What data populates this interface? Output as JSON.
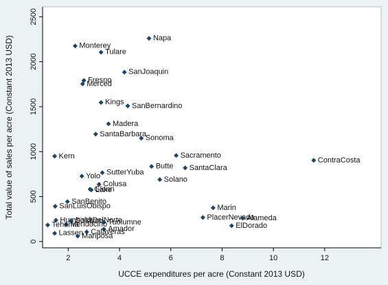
{
  "chart_data": {
    "type": "scatter",
    "x_label": "UCCE expenditures per acre (Constant 2013 USD)",
    "y_label": "Total value of sales per acre (Constant 2013 USD)",
    "xlim": [
      1,
      14.2
    ],
    "xticks": [
      2,
      4,
      6,
      8,
      10,
      12
    ],
    "ylim": [
      -70,
      2610
    ],
    "yticks": [
      0,
      500,
      1000,
      1500,
      2000,
      2500
    ],
    "grid": false,
    "color": "#1a476f",
    "points": [
      {
        "label": "Napa",
        "x": 5.15,
        "y": 2260
      },
      {
        "label": "Monterey",
        "x": 2.27,
        "y": 2175
      },
      {
        "label": "Tulare",
        "x": 3.28,
        "y": 2106
      },
      {
        "label": "SanJoaquin",
        "x": 4.19,
        "y": 1884
      },
      {
        "label": "Fresno",
        "x": 2.61,
        "y": 1792
      },
      {
        "label": "Merced",
        "x": 2.56,
        "y": 1753
      },
      {
        "label": "Kings",
        "x": 3.28,
        "y": 1547
      },
      {
        "label": "SanBernardino",
        "x": 4.32,
        "y": 1508
      },
      {
        "label": "Madera",
        "x": 3.57,
        "y": 1309
      },
      {
        "label": "SantaBarbara",
        "x": 3.07,
        "y": 1194
      },
      {
        "label": "Sonoma",
        "x": 4.85,
        "y": 1149
      },
      {
        "label": "Kern",
        "x": 1.47,
        "y": 949
      },
      {
        "label": "Sacramento",
        "x": 6.21,
        "y": 957
      },
      {
        "label": "ContraCosta",
        "x": 11.57,
        "y": 903
      },
      {
        "label": "Butte",
        "x": 5.25,
        "y": 835
      },
      {
        "label": "SantaClara",
        "x": 6.56,
        "y": 819
      },
      {
        "label": "SutterYuba",
        "x": 3.33,
        "y": 766
      },
      {
        "label": "Yolo",
        "x": 2.53,
        "y": 727
      },
      {
        "label": "Solano",
        "x": 5.57,
        "y": 689
      },
      {
        "label": "Colusa",
        "x": 3.2,
        "y": 636
      },
      {
        "label": "Glenn",
        "x": 2.85,
        "y": 582
      },
      {
        "label": "Lake",
        "x": 2.9,
        "y": 574
      },
      {
        "label": "SanBenito",
        "x": 1.97,
        "y": 444
      },
      {
        "label": "SanLuisObispo",
        "x": 1.49,
        "y": 391
      },
      {
        "label": "Marin",
        "x": 7.65,
        "y": 375
      },
      {
        "label": "PlacerNevada",
        "x": 7.25,
        "y": 268
      },
      {
        "label": "Alameda",
        "x": 8.8,
        "y": 260
      },
      {
        "label": "ElDorado",
        "x": 8.37,
        "y": 176
      },
      {
        "label": "HumboldtDelNorte",
        "x": 1.52,
        "y": 237
      },
      {
        "label": "Siskiyou",
        "x": 2.11,
        "y": 230
      },
      {
        "label": "Tuolumne",
        "x": 3.39,
        "y": 214
      },
      {
        "label": "Mendocino",
        "x": 1.92,
        "y": 191
      },
      {
        "label": "Tehama",
        "x": 1.2,
        "y": 184
      },
      {
        "label": "Amador",
        "x": 3.39,
        "y": 138
      },
      {
        "label": "Calaveras",
        "x": 2.72,
        "y": 107
      },
      {
        "label": "Lassen",
        "x": 1.47,
        "y": 92
      },
      {
        "label": "Mariposa",
        "x": 2.37,
        "y": 61
      }
    ]
  }
}
